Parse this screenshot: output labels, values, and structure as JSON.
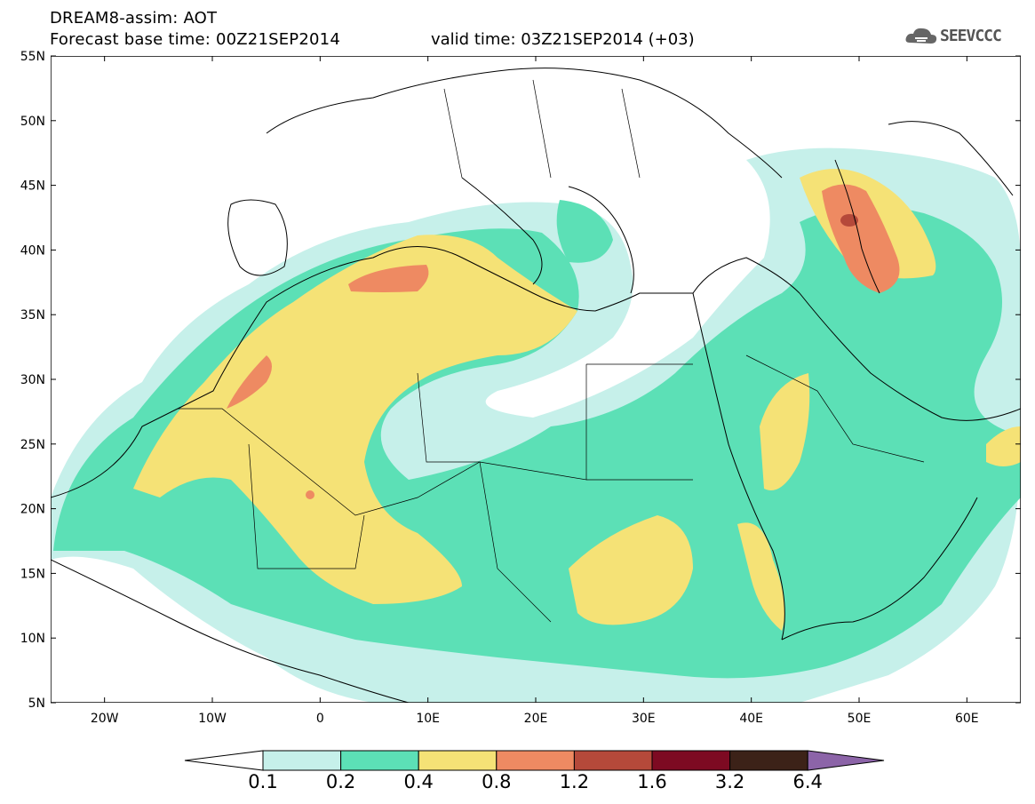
{
  "header": {
    "model_line": "DREAM8-assim: AOT",
    "base_time": "Forecast base time: 00Z21SEP2014",
    "valid_time": "valid time: 03Z21SEP2014 (+03)",
    "logo_text": "SEEVCCC"
  },
  "map": {
    "lat_labels": [
      "55N",
      "50N",
      "45N",
      "40N",
      "35N",
      "30N",
      "25N",
      "20N",
      "15N",
      "10N",
      "5N"
    ],
    "lon_labels": [
      "20W",
      "10W",
      "0",
      "10E",
      "20E",
      "30E",
      "40E",
      "50E",
      "60E"
    ],
    "lon_range": [
      -25,
      65
    ],
    "lat_range": [
      5,
      55
    ]
  },
  "colorbar": {
    "levels": [
      "0.1",
      "0.2",
      "0.4",
      "0.8",
      "1.2",
      "1.6",
      "3.2",
      "6.4"
    ],
    "colors": [
      "#c6f0ea",
      "#5ce0b6",
      "#f5e276",
      "#ee8a62",
      "#b5493a",
      "#7d0a22",
      "#3c2218",
      "#8c64a8"
    ]
  }
}
